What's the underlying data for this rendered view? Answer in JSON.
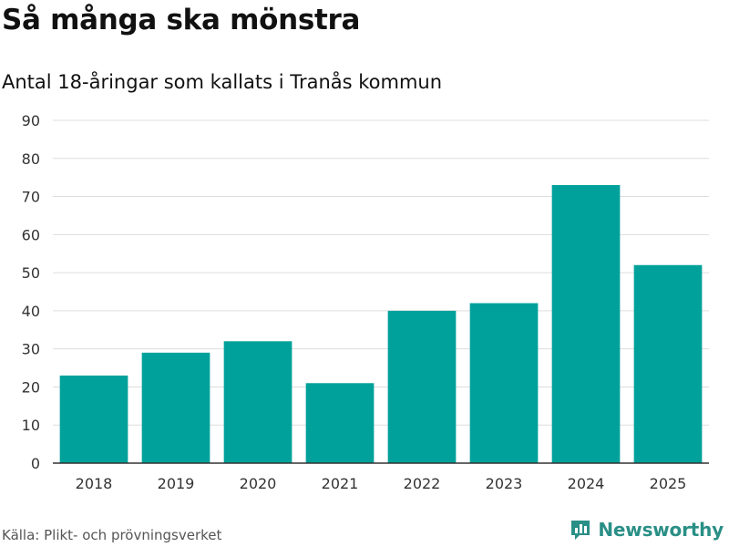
{
  "header": {
    "title": "Så många ska mönstra",
    "subtitle": "Antal 18-åringar som kallats i Tranås kommun"
  },
  "footer": {
    "source": "Källa: Plikt- och prövningsverket",
    "brand": "Newsworthy",
    "brand_icon": "bar-chart-speech-bubble-icon"
  },
  "colors": {
    "bar": "#00a19a",
    "grid": "#dddddd",
    "axis": "#333333",
    "brand": "#2a8f86"
  },
  "chart_data": {
    "type": "bar",
    "categories": [
      "2018",
      "2019",
      "2020",
      "2021",
      "2022",
      "2023",
      "2024",
      "2025"
    ],
    "values": [
      23,
      29,
      32,
      21,
      40,
      42,
      73,
      52
    ],
    "ylim": [
      0,
      90
    ],
    "yticks": [
      0,
      10,
      20,
      30,
      40,
      50,
      60,
      70,
      80,
      90
    ],
    "grid": true,
    "legend": "none"
  }
}
